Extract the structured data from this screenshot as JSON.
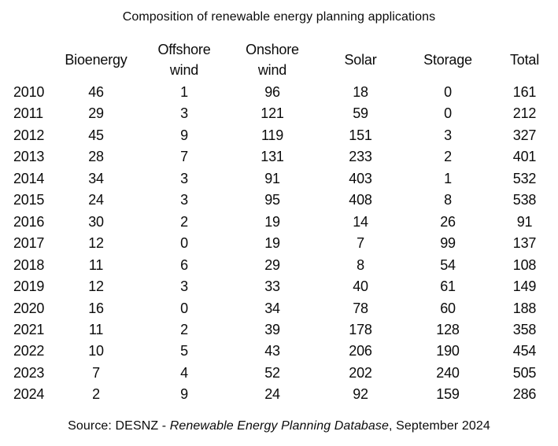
{
  "title": "Composition of renewable energy planning applications",
  "source_note": {
    "prefix": "Source: DESNZ - ",
    "italic_text": "Renewable Energy Planning Database",
    "suffix": ", September 2024"
  },
  "chart_data": {
    "type": "table",
    "title": "Composition of renewable energy planning applications",
    "columns": [
      "",
      "Bioenergy",
      "Offshore wind",
      "Onshore wind",
      "Solar",
      "Storage",
      "Total"
    ],
    "rows": [
      [
        "2010",
        46,
        1,
        96,
        18,
        0,
        161
      ],
      [
        "2011",
        29,
        3,
        121,
        59,
        0,
        212
      ],
      [
        "2012",
        45,
        9,
        119,
        151,
        3,
        327
      ],
      [
        "2013",
        28,
        7,
        131,
        233,
        2,
        401
      ],
      [
        "2014",
        34,
        3,
        91,
        403,
        1,
        532
      ],
      [
        "2015",
        24,
        3,
        95,
        408,
        8,
        538
      ],
      [
        "2016",
        30,
        2,
        19,
        14,
        26,
        91
      ],
      [
        "2017",
        12,
        0,
        19,
        7,
        99,
        137
      ],
      [
        "2018",
        11,
        6,
        29,
        8,
        54,
        108
      ],
      [
        "2019",
        12,
        3,
        33,
        40,
        61,
        149
      ],
      [
        "2020",
        16,
        0,
        34,
        78,
        60,
        188
      ],
      [
        "2021",
        11,
        2,
        39,
        178,
        128,
        358
      ],
      [
        "2022",
        10,
        5,
        43,
        206,
        190,
        454
      ],
      [
        "2023",
        7,
        4,
        52,
        202,
        240,
        505
      ],
      [
        "2024",
        2,
        9,
        24,
        92,
        159,
        286
      ]
    ],
    "source": "Source: DESNZ - Renewable Energy Planning Database, September 2024"
  }
}
